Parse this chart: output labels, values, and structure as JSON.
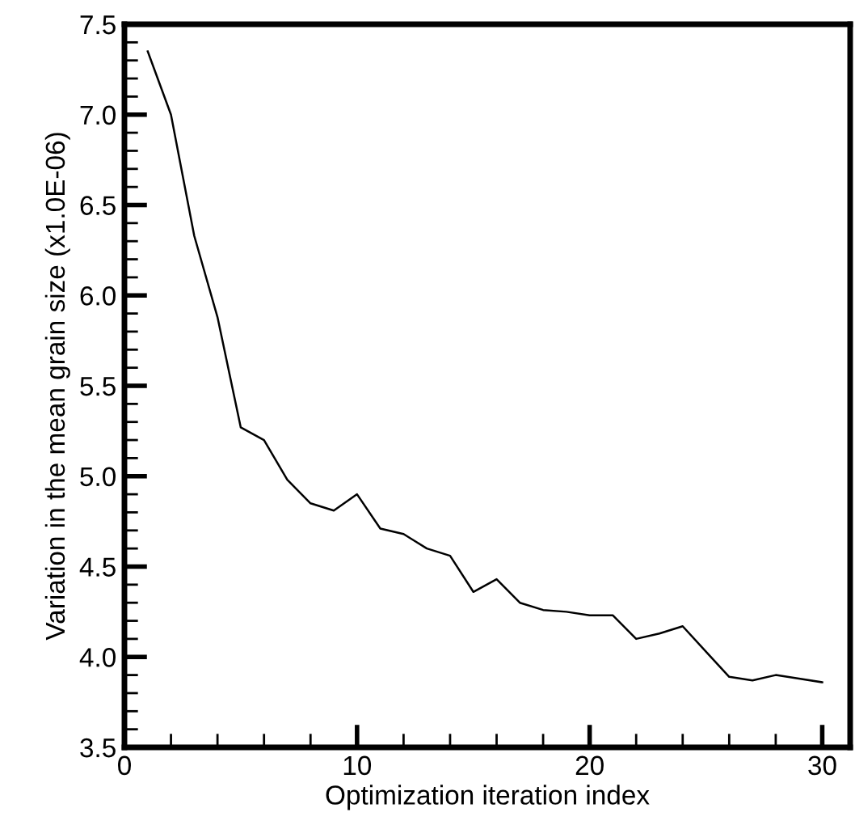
{
  "chart_data": {
    "type": "line",
    "xlabel": "Optimization iteration index",
    "ylabel": "Variation in the mean grain size (x1.0E-06)",
    "x": [
      1,
      2,
      3,
      4,
      5,
      6,
      7,
      8,
      9,
      10,
      11,
      12,
      13,
      14,
      15,
      16,
      17,
      18,
      19,
      20,
      21,
      22,
      23,
      24,
      25,
      26,
      27,
      28,
      29,
      30
    ],
    "series": [
      {
        "color": "#000000",
        "values": [
          7.35,
          7.0,
          6.33,
          5.88,
          5.27,
          5.2,
          4.98,
          4.85,
          4.81,
          4.9,
          4.71,
          4.68,
          4.6,
          4.56,
          4.36,
          4.43,
          4.3,
          4.26,
          4.25,
          4.23,
          4.23,
          4.1,
          4.13,
          4.17,
          4.03,
          3.89,
          3.87,
          3.9,
          3.88,
          3.86
        ]
      }
    ],
    "xlim": [
      0,
      31.2
    ],
    "xticks": [
      0,
      10,
      20,
      30
    ],
    "ylim": [
      3.5,
      7.5
    ],
    "yticks": [
      3.5,
      {
        "value": 4,
        "label": "4.0"
      },
      4.5,
      {
        "value": 5,
        "label": "5.0"
      },
      5.5,
      {
        "value": 6,
        "label": "6.0"
      },
      6.5,
      {
        "value": 7,
        "label": "7.0"
      },
      7.5
    ],
    "grid": false,
    "legend": false,
    "marker": "none",
    "line_style": "solid"
  }
}
